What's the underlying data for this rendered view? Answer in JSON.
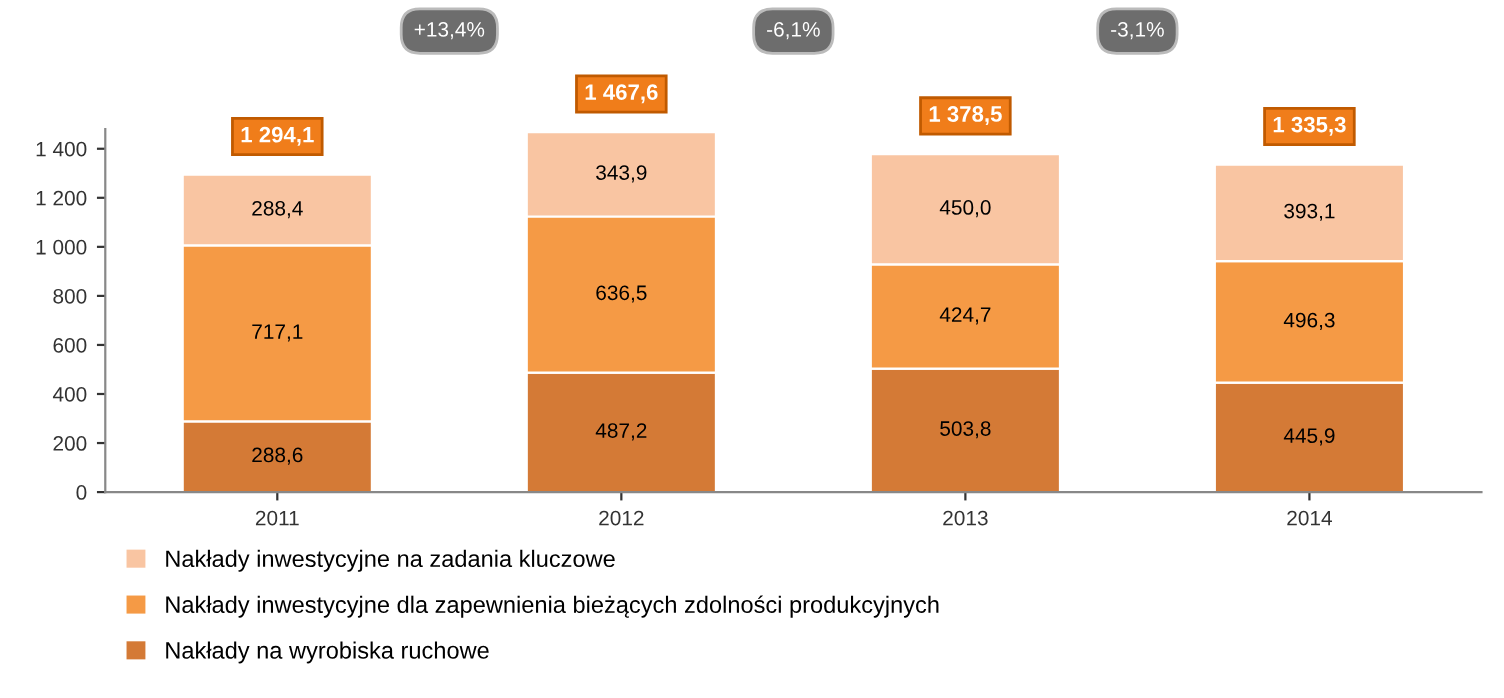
{
  "chart_data": {
    "type": "bar",
    "stacked": true,
    "categories": [
      "2011",
      "2012",
      "2013",
      "2014"
    ],
    "series": [
      {
        "name": "Nakłady na wyrobiska ruchowe",
        "color": "#d47a36",
        "values": [
          288.6,
          487.2,
          503.8,
          445.9
        ],
        "value_labels": [
          "288,6",
          "487,2",
          "503,8",
          "445,9"
        ]
      },
      {
        "name": "Nakłady inwestycyjne dla zapewnienia bieżących zdolności produkcyjnych",
        "color": "#f59a45",
        "values": [
          717.1,
          636.5,
          424.7,
          496.3
        ],
        "value_labels": [
          "717,1",
          "636,5",
          "424,7",
          "496,3"
        ]
      },
      {
        "name": "Nakłady inwestycyjne na zadania kluczowe",
        "color": "#f9c5a2",
        "values": [
          288.4,
          343.9,
          450.0,
          393.1
        ],
        "value_labels": [
          "288,4",
          "343,9",
          "450,0",
          "393,1"
        ]
      }
    ],
    "totals": [
      "1 294,1",
      "1 467,6",
      "1 378,5",
      "1 335,3"
    ],
    "annotations": [
      "+13,4%",
      "-6,1%",
      "-3,1%"
    ],
    "ylim": [
      0,
      1480
    ],
    "yticks": [
      0,
      200,
      400,
      600,
      800,
      {
        "value": 1000,
        "label": "1 000"
      },
      {
        "value": 1200,
        "label": "1 200"
      },
      {
        "value": 1400,
        "label": "1 400"
      }
    ],
    "grid": false,
    "legend": "bottom"
  }
}
